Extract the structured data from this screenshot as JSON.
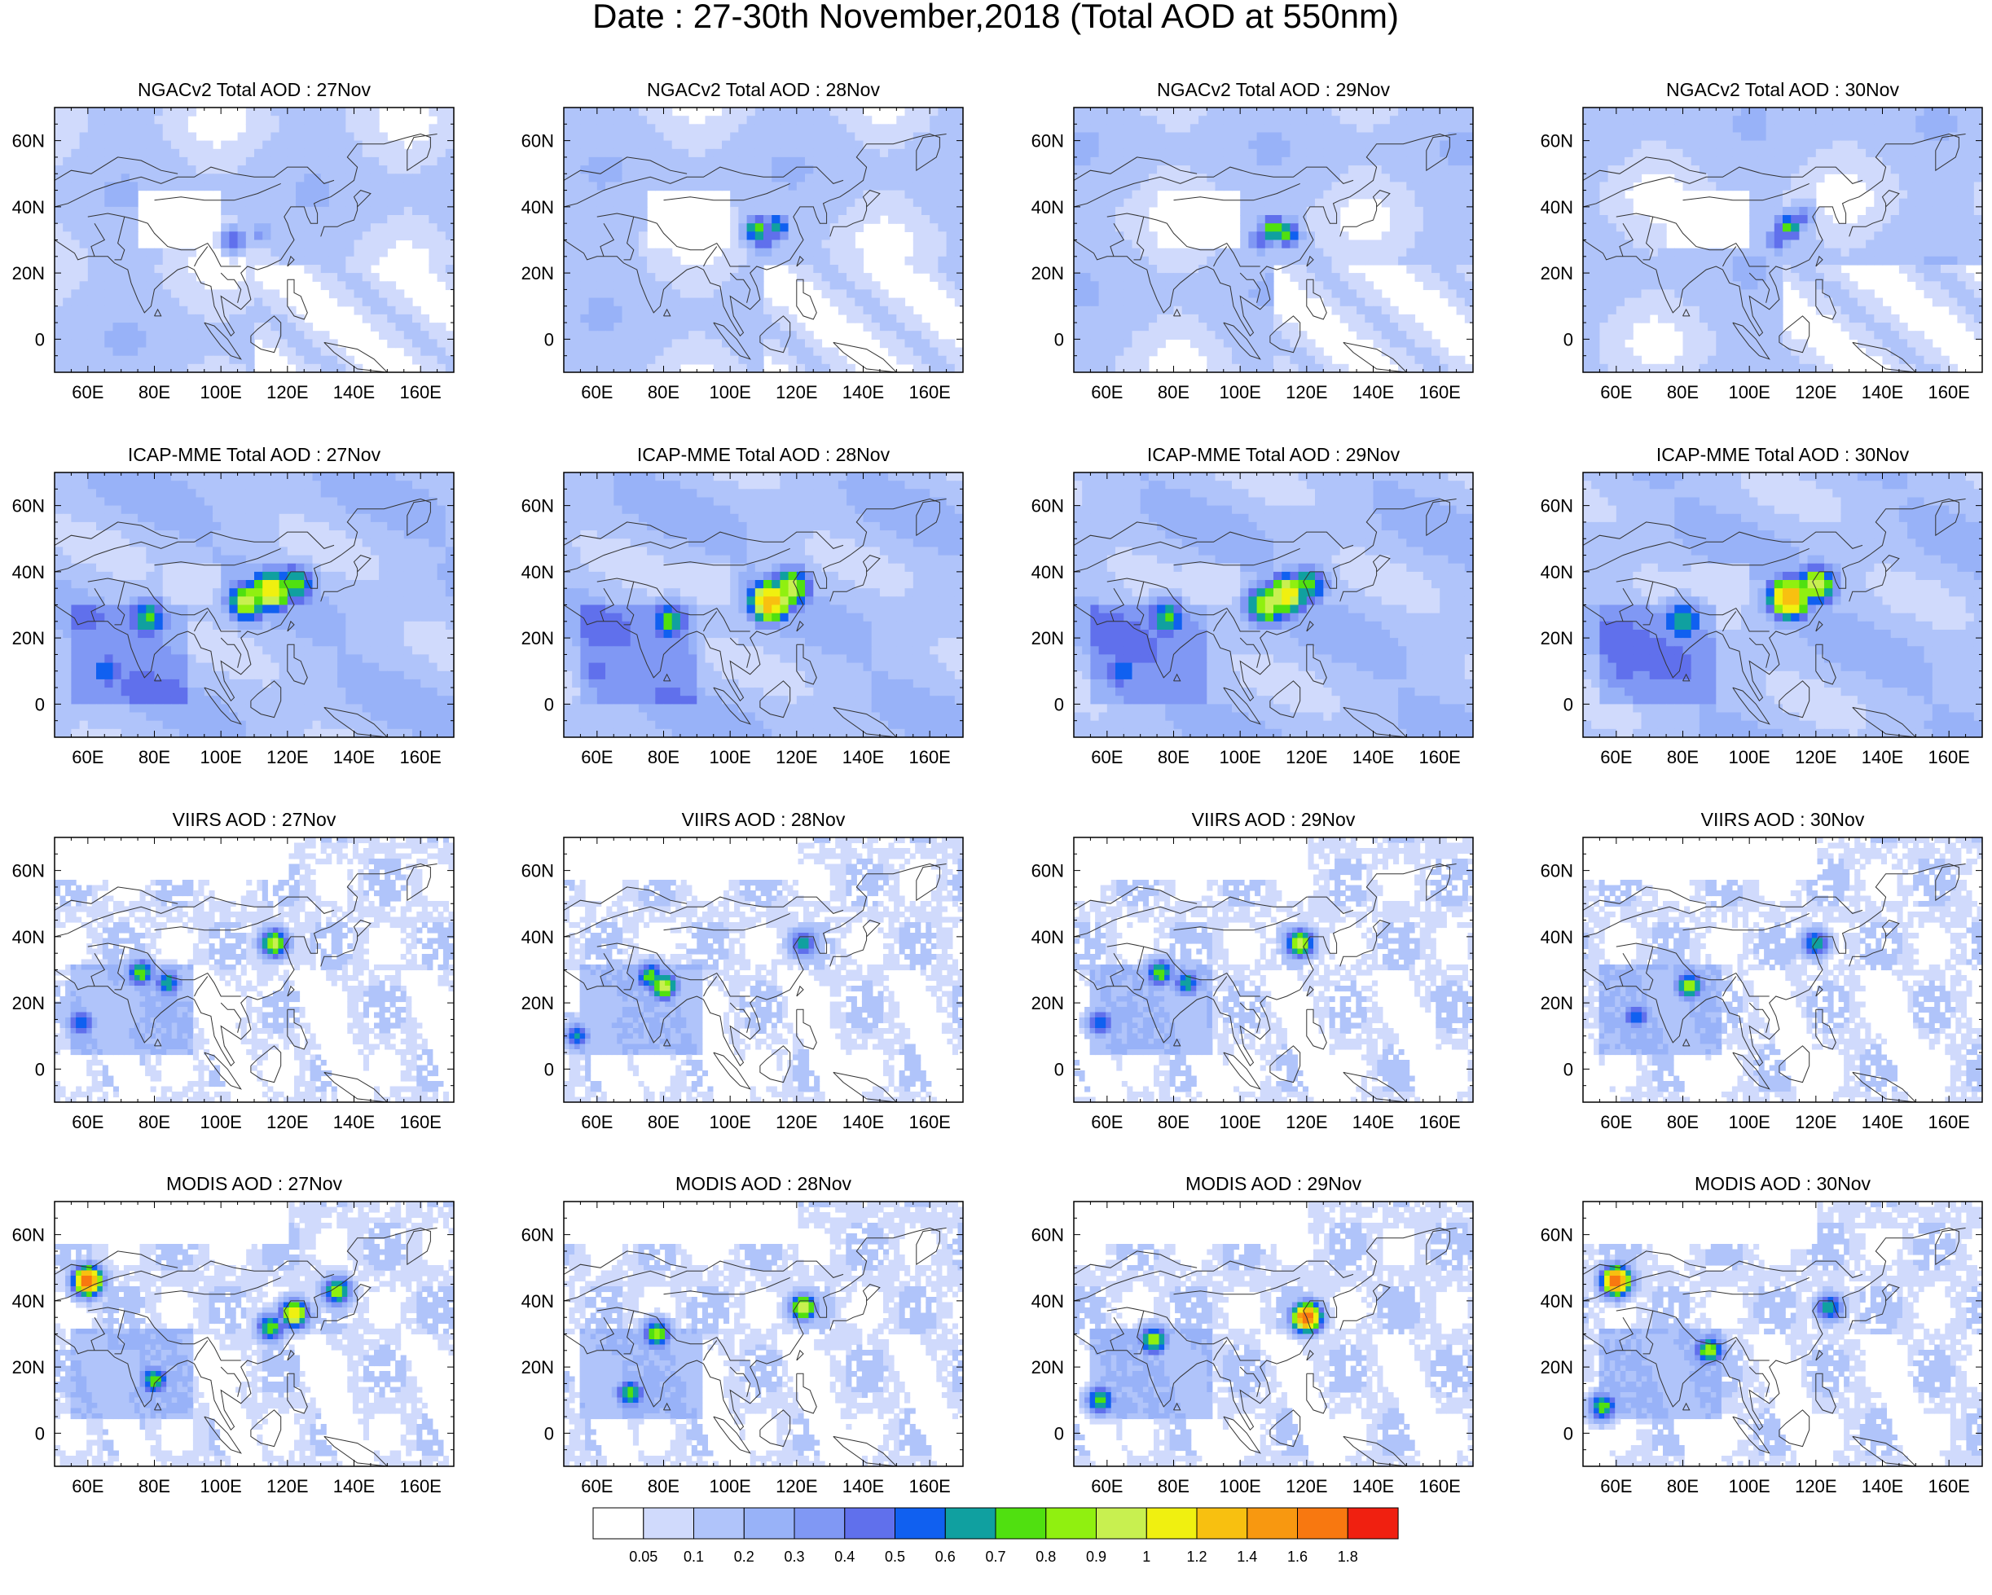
{
  "figure": {
    "title": "Date : 27-30th November,2018 (Total AOD at 550nm)"
  },
  "chart_data": {
    "type": "heatmap",
    "title": "Date : 27-30th November,2018 (Total AOD at 550nm)",
    "rows": [
      {
        "name": "NGACv2",
        "titles": [
          "NGACv2 Total AOD : 27Nov",
          "NGACv2 Total AOD : 28Nov",
          "NGACv2 Total AOD : 29Nov",
          "NGACv2 Total AOD : 30Nov"
        ]
      },
      {
        "name": "ICAP-MME",
        "titles": [
          "ICAP-MME Total AOD : 27Nov",
          "ICAP-MME Total AOD : 28Nov",
          "ICAP-MME Total AOD : 29Nov",
          "ICAP-MME Total AOD : 30Nov"
        ]
      },
      {
        "name": "VIIRS",
        "titles": [
          "VIIRS AOD : 27Nov",
          "VIIRS AOD : 28Nov",
          "VIIRS AOD : 29Nov",
          "VIIRS AOD : 30Nov"
        ]
      },
      {
        "name": "MODIS",
        "titles": [
          "MODIS AOD : 27Nov",
          "MODIS AOD : 28Nov",
          "MODIS AOD : 29Nov",
          "MODIS AOD : 30Nov"
        ]
      }
    ],
    "x_ticks": [
      "60E",
      "80E",
      "100E",
      "120E",
      "140E",
      "160E"
    ],
    "x_tick_values": [
      60,
      80,
      100,
      120,
      140,
      160
    ],
    "y_ticks": [
      "60N",
      "40N",
      "20N",
      "0"
    ],
    "y_tick_values": [
      60,
      40,
      20,
      0
    ],
    "xlim": [
      50,
      170
    ],
    "ylim": [
      -10,
      70
    ],
    "colorbar": {
      "labels": [
        "0.05",
        "0.1",
        "0.2",
        "0.3",
        "0.4",
        "0.5",
        "0.6",
        "0.7",
        "0.8",
        "0.9",
        "1",
        "1.2",
        "1.4",
        "1.6",
        "1.8"
      ],
      "colors": [
        "#ffffff",
        "#d0dafc",
        "#b0c4fa",
        "#98b2f8",
        "#8098f4",
        "#6070ec",
        "#1060f0",
        "#10a0a0",
        "#50e010",
        "#90f010",
        "#c8f050",
        "#f0f010",
        "#f8c010",
        "#f89810",
        "#f87810",
        "#f02010"
      ]
    },
    "hotspots": [
      [
        [
          {
            "lon": 104,
            "lat": 30,
            "v": 0.5
          },
          {
            "lon": 112,
            "lat": 32,
            "v": 0.35
          }
        ],
        [
          {
            "lon": 108,
            "lat": 33,
            "v": 0.75
          },
          {
            "lon": 114,
            "lat": 34,
            "v": 0.7
          },
          {
            "lon": 110,
            "lat": 30,
            "v": 0.5
          }
        ],
        [
          {
            "lon": 110,
            "lat": 33,
            "v": 0.8
          },
          {
            "lon": 114,
            "lat": 32,
            "v": 0.75
          },
          {
            "lon": 106,
            "lat": 30,
            "v": 0.5
          }
        ],
        [
          {
            "lon": 112,
            "lat": 34,
            "v": 0.75
          },
          {
            "lon": 108,
            "lat": 30,
            "v": 0.5
          },
          {
            "lon": 116,
            "lat": 37,
            "v": 0.45
          }
        ]
      ],
      [
        [
          {
            "lon": 115,
            "lat": 34,
            "v": 1.2
          },
          {
            "lon": 108,
            "lat": 31,
            "v": 1.0
          },
          {
            "lon": 122,
            "lat": 36,
            "v": 0.8
          },
          {
            "lon": 78,
            "lat": 26,
            "v": 0.75
          },
          {
            "lon": 66,
            "lat": 10,
            "v": 0.6
          }
        ],
        [
          {
            "lon": 112,
            "lat": 31,
            "v": 1.4
          },
          {
            "lon": 118,
            "lat": 35,
            "v": 1.0
          },
          {
            "lon": 82,
            "lat": 25,
            "v": 0.75
          },
          {
            "lon": 60,
            "lat": 10,
            "v": 0.5
          }
        ],
        [
          {
            "lon": 114,
            "lat": 33,
            "v": 1.2
          },
          {
            "lon": 108,
            "lat": 30,
            "v": 1.0
          },
          {
            "lon": 120,
            "lat": 36,
            "v": 0.8
          },
          {
            "lon": 78,
            "lat": 26,
            "v": 0.75
          },
          {
            "lon": 64,
            "lat": 10,
            "v": 0.6
          }
        ],
        [
          {
            "lon": 112,
            "lat": 32,
            "v": 1.4
          },
          {
            "lon": 120,
            "lat": 36,
            "v": 1.0
          },
          {
            "lon": 80,
            "lat": 25,
            "v": 0.75
          },
          {
            "lon": 62,
            "lat": 10,
            "v": 0.5
          }
        ]
      ],
      [
        [
          {
            "lon": 116,
            "lat": 38,
            "v": 1.0
          },
          {
            "lon": 76,
            "lat": 29,
            "v": 0.8
          },
          {
            "lon": 84,
            "lat": 26,
            "v": 0.7
          },
          {
            "lon": 58,
            "lat": 14,
            "v": 0.6
          }
        ],
        [
          {
            "lon": 80,
            "lat": 25,
            "v": 1.0
          },
          {
            "lon": 76,
            "lat": 28,
            "v": 0.8
          },
          {
            "lon": 122,
            "lat": 38,
            "v": 0.7
          },
          {
            "lon": 54,
            "lat": 10,
            "v": 0.6
          }
        ],
        [
          {
            "lon": 118,
            "lat": 38,
            "v": 1.0
          },
          {
            "lon": 76,
            "lat": 29,
            "v": 0.8
          },
          {
            "lon": 84,
            "lat": 26,
            "v": 0.7
          },
          {
            "lon": 58,
            "lat": 14,
            "v": 0.6
          }
        ],
        [
          {
            "lon": 82,
            "lat": 25,
            "v": 0.9
          },
          {
            "lon": 120,
            "lat": 38,
            "v": 0.7
          },
          {
            "lon": 66,
            "lat": 16,
            "v": 0.6
          }
        ]
      ],
      [
        [
          {
            "lon": 122,
            "lat": 36,
            "v": 1.2
          },
          {
            "lon": 135,
            "lat": 43,
            "v": 0.9
          },
          {
            "lon": 80,
            "lat": 16,
            "v": 0.8
          },
          {
            "lon": 60,
            "lat": 46,
            "v": 1.8
          },
          {
            "lon": 115,
            "lat": 32,
            "v": 0.8
          }
        ],
        [
          {
            "lon": 122,
            "lat": 38,
            "v": 1.0
          },
          {
            "lon": 78,
            "lat": 30,
            "v": 0.9
          },
          {
            "lon": 70,
            "lat": 12,
            "v": 0.8
          }
        ],
        [
          {
            "lon": 120,
            "lat": 35,
            "v": 1.8
          },
          {
            "lon": 74,
            "lat": 28,
            "v": 0.9
          },
          {
            "lon": 58,
            "lat": 10,
            "v": 0.8
          }
        ],
        [
          {
            "lon": 88,
            "lat": 25,
            "v": 0.9
          },
          {
            "lon": 124,
            "lat": 38,
            "v": 0.7
          },
          {
            "lon": 60,
            "lat": 46,
            "v": 1.8
          },
          {
            "lon": 56,
            "lat": 8,
            "v": 0.8
          }
        ]
      ]
    ],
    "grid": false,
    "legend_placement": "bottom"
  }
}
